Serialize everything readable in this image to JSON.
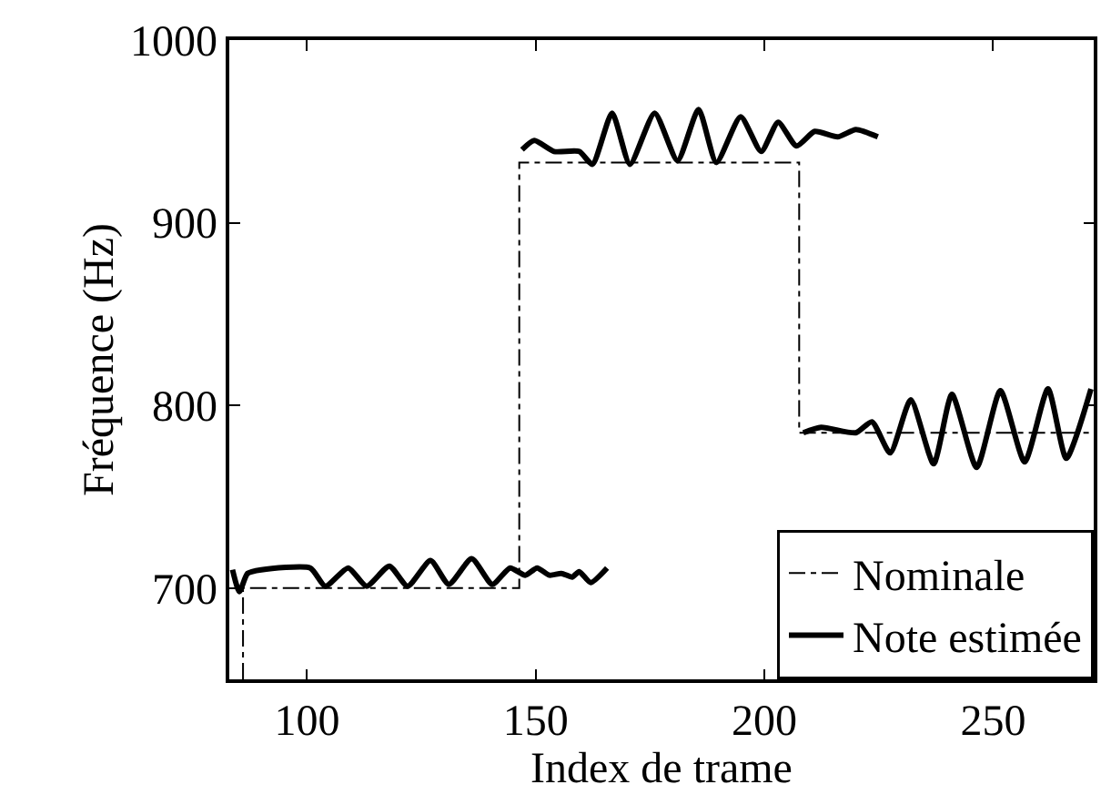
{
  "chart_data": {
    "type": "line",
    "xlabel": "Index de trame",
    "ylabel": "Fréquence (Hz)",
    "xlim": [
      83,
      272
    ],
    "xticks": [
      100,
      150,
      200,
      250
    ],
    "ylim": [
      650,
      1000
    ],
    "yticks": [
      700,
      800,
      900,
      1000
    ],
    "legend": "bottom right",
    "series": [
      {
        "name": "Nominale",
        "color": "#000000",
        "line_style": "dashdot",
        "x": [
          86,
          86,
          146.4,
          146.4,
          207.6,
          207.6,
          272
        ],
        "values": [
          650,
          700,
          700,
          933,
          933,
          785,
          785
        ]
      },
      {
        "name": "Note estimée",
        "color": "#000000",
        "line_style": "solid",
        "x": [
          83.7,
          85.2,
          87,
          90,
          100.7,
          104,
          109,
          113,
          118,
          122,
          127,
          131,
          136,
          140.5,
          144.4,
          147.7,
          150.3,
          153,
          155.6,
          158,
          159.5,
          162,
          165.6
        ],
        "values": [
          710,
          698,
          708,
          710,
          711,
          701,
          711,
          701,
          712,
          701,
          715,
          702,
          716,
          702,
          711,
          707,
          711,
          707,
          708,
          706,
          709,
          703,
          711
        ]
      },
      {
        "color": "#000000",
        "line_style": "solid",
        "x": [
          147,
          149.7,
          154,
          159.5,
          162.4,
          166.7,
          170.6,
          176,
          181,
          185.6,
          189.5,
          194.8,
          199.3,
          203,
          207,
          211,
          216,
          220,
          224.8
        ],
        "values": [
          940,
          945,
          939,
          939,
          932,
          960,
          932,
          960,
          934,
          962,
          933,
          958,
          939,
          955,
          942,
          950,
          947,
          951,
          947
        ]
      },
      {
        "color": "#000000",
        "line_style": "solid",
        "x": [
          208.5,
          212.4,
          220,
          223.5,
          227.5,
          232,
          237,
          241,
          246.4,
          251.6,
          256.9,
          262,
          266,
          271.4
        ],
        "values": [
          785,
          788,
          785,
          791,
          774,
          803,
          768,
          806,
          766,
          808,
          769,
          809,
          771,
          809
        ]
      }
    ]
  }
}
